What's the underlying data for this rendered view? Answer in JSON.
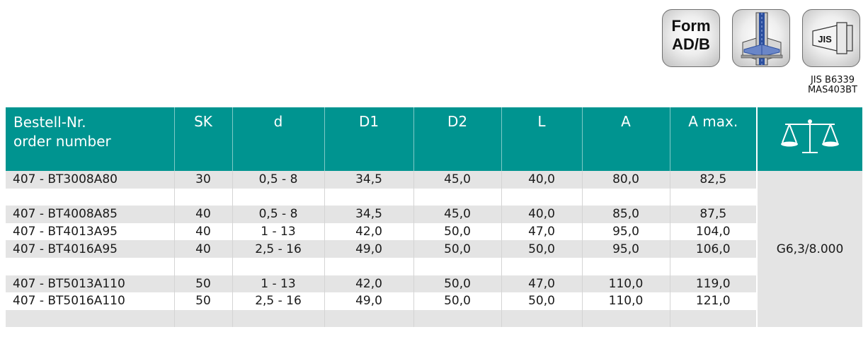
{
  "icons": {
    "form_line1": "Form",
    "form_line2": "AD/B",
    "jis_label": "JIS",
    "jis_caption_line1": "JIS B6339",
    "jis_caption_line2": "MAS403BT"
  },
  "table": {
    "headers": {
      "order_line1": "Bestell-Nr.",
      "order_line2": "order number",
      "sk": "SK",
      "d": "d",
      "d1": "D1",
      "d2": "D2",
      "l": "L",
      "a": "A",
      "a_max": "A max."
    },
    "balance_value": "G6,3/8.000",
    "rows": [
      {
        "order": "407 - BT3008A80",
        "sk": "30",
        "d": "0,5 - 8",
        "d1": "34,5",
        "d2": "45,0",
        "l": "40,0",
        "a": "80,0",
        "a_max": "82,5"
      },
      {
        "order": "",
        "sk": "",
        "d": "",
        "d1": "",
        "d2": "",
        "l": "",
        "a": "",
        "a_max": ""
      },
      {
        "order": "407 - BT4008A85",
        "sk": "40",
        "d": "0,5 - 8",
        "d1": "34,5",
        "d2": "45,0",
        "l": "40,0",
        "a": "85,0",
        "a_max": "87,5"
      },
      {
        "order": "407 - BT4013A95",
        "sk": "40",
        "d": "1 - 13",
        "d1": "42,0",
        "d2": "50,0",
        "l": "47,0",
        "a": "95,0",
        "a_max": "104,0"
      },
      {
        "order": "407 - BT4016A95",
        "sk": "40",
        "d": "2,5 - 16",
        "d1": "49,0",
        "d2": "50,0",
        "l": "50,0",
        "a": "95,0",
        "a_max": "106,0"
      },
      {
        "order": "",
        "sk": "",
        "d": "",
        "d1": "",
        "d2": "",
        "l": "",
        "a": "",
        "a_max": ""
      },
      {
        "order": "407 - BT5013A110",
        "sk": "50",
        "d": "1 - 13",
        "d1": "42,0",
        "d2": "50,0",
        "l": "47,0",
        "a": "110,0",
        "a_max": "119,0"
      },
      {
        "order": "407 - BT5016A110",
        "sk": "50",
        "d": "2,5 - 16",
        "d1": "49,0",
        "d2": "50,0",
        "l": "50,0",
        "a": "110,0",
        "a_max": "121,0"
      },
      {
        "order": "",
        "sk": "",
        "d": "",
        "d1": "",
        "d2": "",
        "l": "",
        "a": "",
        "a_max": ""
      }
    ]
  }
}
